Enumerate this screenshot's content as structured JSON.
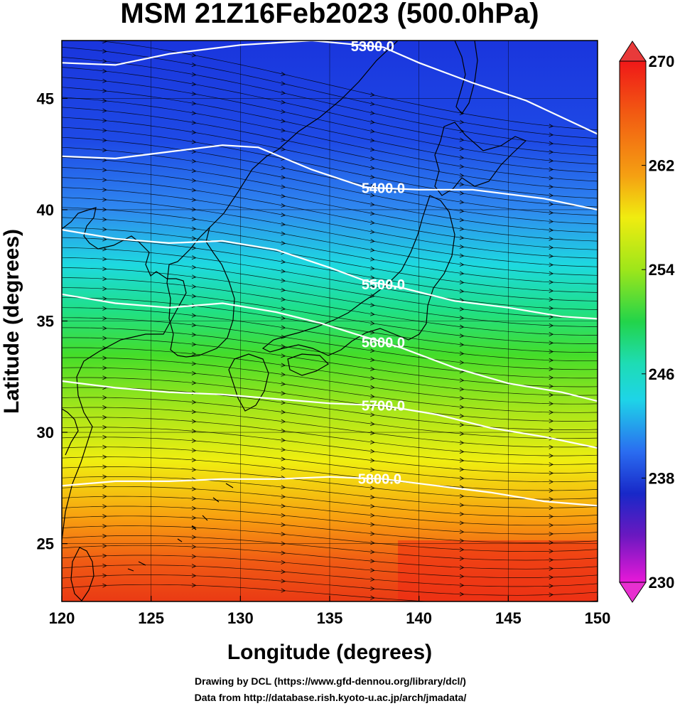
{
  "title": "MSM 21Z16Feb2023 (500.0hPa)",
  "xlabel": "Longitude (degrees)",
  "ylabel": "Latitude  (degrees)",
  "credits": [
    "Drawing by DCL (https://www.gfd-dennou.org/library/dcl/)",
    "Data from http://database.rish.kyoto-u.ac.jp/arch/jmadata/"
  ],
  "map": {
    "lon_range": [
      120,
      150
    ],
    "lat_range": [
      22.4,
      47.6
    ],
    "x_ticks": [
      120,
      125,
      130,
      135,
      140,
      145,
      150
    ],
    "x_tick_labels": [
      "120",
      "125",
      "130",
      "135",
      "140",
      "145",
      "150"
    ],
    "y_ticks": [
      25,
      30,
      35,
      40,
      45
    ],
    "y_tick_labels": [
      "25",
      "30",
      "35",
      "40",
      "45"
    ],
    "grid": true,
    "shading_variable_range": [
      230,
      270
    ],
    "contours": [
      {
        "label": "5300.0",
        "label_lon": 137.4,
        "pts": [
          [
            120,
            46.6
          ],
          [
            123,
            46.5
          ],
          [
            126,
            47.0
          ],
          [
            130,
            47.4
          ],
          [
            134,
            47.6
          ],
          [
            138,
            47.3
          ],
          [
            140,
            46.6
          ],
          [
            143,
            45.7
          ],
          [
            146,
            44.9
          ],
          [
            150,
            43.4
          ]
        ]
      },
      {
        "label": "5400.0",
        "label_lon": 138.0,
        "pts": [
          [
            120,
            42.4
          ],
          [
            123,
            42.3
          ],
          [
            126,
            42.6
          ],
          [
            129,
            42.9
          ],
          [
            131,
            42.8
          ],
          [
            134,
            41.8
          ],
          [
            137,
            41.0
          ],
          [
            140,
            40.9
          ],
          [
            143,
            40.9
          ],
          [
            147,
            40.5
          ],
          [
            150,
            40.0
          ]
        ]
      },
      {
        "label": "5500.0",
        "label_lon": 138.0,
        "pts": [
          [
            120,
            39.1
          ],
          [
            123,
            38.7
          ],
          [
            126,
            38.5
          ],
          [
            129,
            38.6
          ],
          [
            132,
            38.2
          ],
          [
            135,
            37.4
          ],
          [
            137,
            36.8
          ],
          [
            139,
            36.5
          ],
          [
            142,
            35.9
          ],
          [
            145,
            35.6
          ],
          [
            148,
            35.2
          ],
          [
            150,
            35.1
          ]
        ]
      },
      {
        "label": "5600.0",
        "label_lon": 138.0,
        "pts": [
          [
            120,
            36.2
          ],
          [
            123,
            35.8
          ],
          [
            126,
            35.6
          ],
          [
            129,
            35.8
          ],
          [
            132,
            35.4
          ],
          [
            134.5,
            34.9
          ],
          [
            136.5,
            34.4
          ],
          [
            139,
            33.8
          ],
          [
            142,
            32.9
          ],
          [
            145,
            32.2
          ],
          [
            148,
            31.8
          ],
          [
            150,
            31.4
          ]
        ]
      },
      {
        "label": "5700.0",
        "label_lon": 138.0,
        "pts": [
          [
            120,
            32.3
          ],
          [
            123,
            32.0
          ],
          [
            126,
            31.8
          ],
          [
            129,
            31.7
          ],
          [
            132,
            31.5
          ],
          [
            135,
            31.3
          ],
          [
            138,
            31.2
          ],
          [
            141,
            30.8
          ],
          [
            144,
            30.2
          ],
          [
            147,
            29.8
          ],
          [
            150,
            29.3
          ]
        ]
      },
      {
        "label": "5800.0",
        "label_lon": 137.8,
        "pts": [
          [
            120,
            27.6
          ],
          [
            123,
            27.8
          ],
          [
            126,
            27.8
          ],
          [
            129,
            27.9
          ],
          [
            132,
            27.9
          ],
          [
            135,
            28.0
          ],
          [
            138,
            27.9
          ],
          [
            141,
            27.6
          ],
          [
            144,
            27.3
          ],
          [
            147,
            26.9
          ],
          [
            150,
            26.7
          ]
        ]
      }
    ]
  },
  "colorbar": {
    "min": 230,
    "max": 270,
    "tick_labels": [
      "270",
      "262",
      "254",
      "246",
      "238",
      "230"
    ],
    "top_color": "#e83a3a",
    "bottom_color": "#e830d0"
  }
}
